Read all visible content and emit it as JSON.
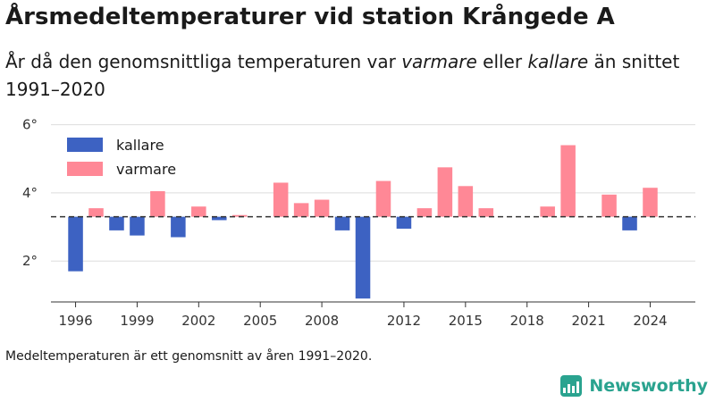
{
  "header": {
    "title": "Årsmedeltemperaturer vid station Krångede A",
    "subtitle_part1": "År då den genomsnittliga temperaturen var ",
    "subtitle_em1": "varmare",
    "subtitle_part2": " eller ",
    "subtitle_em2": "kallare",
    "subtitle_part3": " än snittet 1991–2020"
  },
  "footer": {
    "note": "Medeltemperaturen är ett genomsnitt av åren 1991–2020.",
    "brand": "Newsworthy"
  },
  "colors": {
    "kallare": "#3d62c2",
    "varmare": "#ff8896",
    "reference_line": "#333333",
    "grid": "#dddddd",
    "brand": "#2aa38f"
  },
  "chart_data": {
    "type": "bar",
    "baseline": 3.3,
    "ylim": [
      0.8,
      6.2
    ],
    "yticks": [
      2,
      4,
      6
    ],
    "ytick_labels": [
      "2°",
      "4°",
      "6°"
    ],
    "xticks": [
      1996,
      1999,
      2002,
      2005,
      2008,
      2012,
      2015,
      2018,
      2021,
      2024
    ],
    "xlim": [
      1994.8,
      2026.2
    ],
    "legend": [
      {
        "key": "kallare",
        "label": "kallare"
      },
      {
        "key": "varmare",
        "label": "varmare"
      }
    ],
    "legend_position": "top-left",
    "grid": true,
    "x": [
      1996,
      1997,
      1998,
      1999,
      2000,
      2001,
      2002,
      2003,
      2004,
      2005,
      2006,
      2007,
      2008,
      2009,
      2010,
      2011,
      2012,
      2013,
      2014,
      2015,
      2016,
      2017,
      2018,
      2019,
      2020,
      2021,
      2022,
      2023,
      2024
    ],
    "values": [
      1.7,
      3.55,
      2.9,
      2.75,
      4.05,
      2.7,
      3.6,
      3.2,
      3.35,
      3.3,
      4.3,
      3.7,
      3.8,
      2.9,
      0.9,
      4.35,
      2.95,
      3.55,
      4.75,
      4.2,
      3.55,
      3.3,
      3.3,
      3.6,
      5.4,
      3.3,
      3.95,
      2.9,
      4.15
    ]
  }
}
